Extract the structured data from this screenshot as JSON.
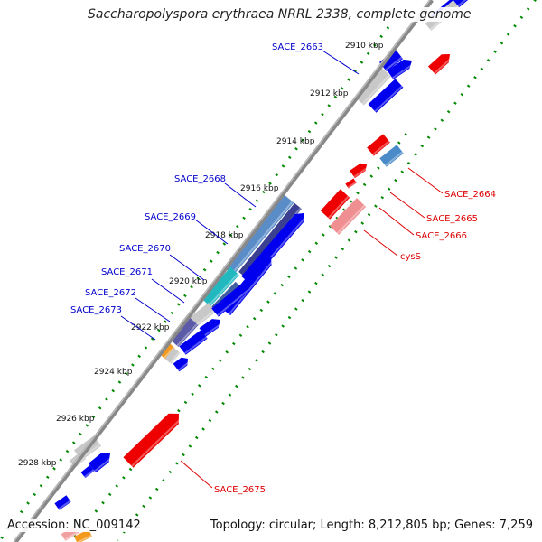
{
  "title": "Saccharopolyspora erythraea NRRL 2338, complete genome",
  "footer": {
    "accession": "Accession: NC_009142",
    "topology": "Topology: circular; Length: 8,212,805 bp; Genes: 7,259"
  },
  "colors": {
    "forward_gene": "#0000ee",
    "reverse_gene": "#ee0000",
    "hypothetical": "#c8c8c8",
    "backbone": "#777777",
    "tick": "#008800",
    "forward_label": "#0000cc",
    "reverse_label": "#dd0000"
  },
  "ruler": {
    "labels": [
      "2910 kbp",
      "2912 kbp",
      "2914 kbp",
      "2916 kbp",
      "2918 kbp",
      "2920 kbp",
      "2922 kbp",
      "2924 kbp",
      "2926 kbp",
      "2928 kbp"
    ]
  },
  "gene_labels": {
    "forward": [
      "SACE_2663",
      "SACE_2668",
      "SACE_2669",
      "SACE_2670",
      "SACE_2671",
      "SACE_2672",
      "SACE_2673"
    ],
    "reverse": [
      "SACE_2664",
      "SACE_2665",
      "SACE_2666",
      "cysS",
      "SACE_2675"
    ]
  }
}
